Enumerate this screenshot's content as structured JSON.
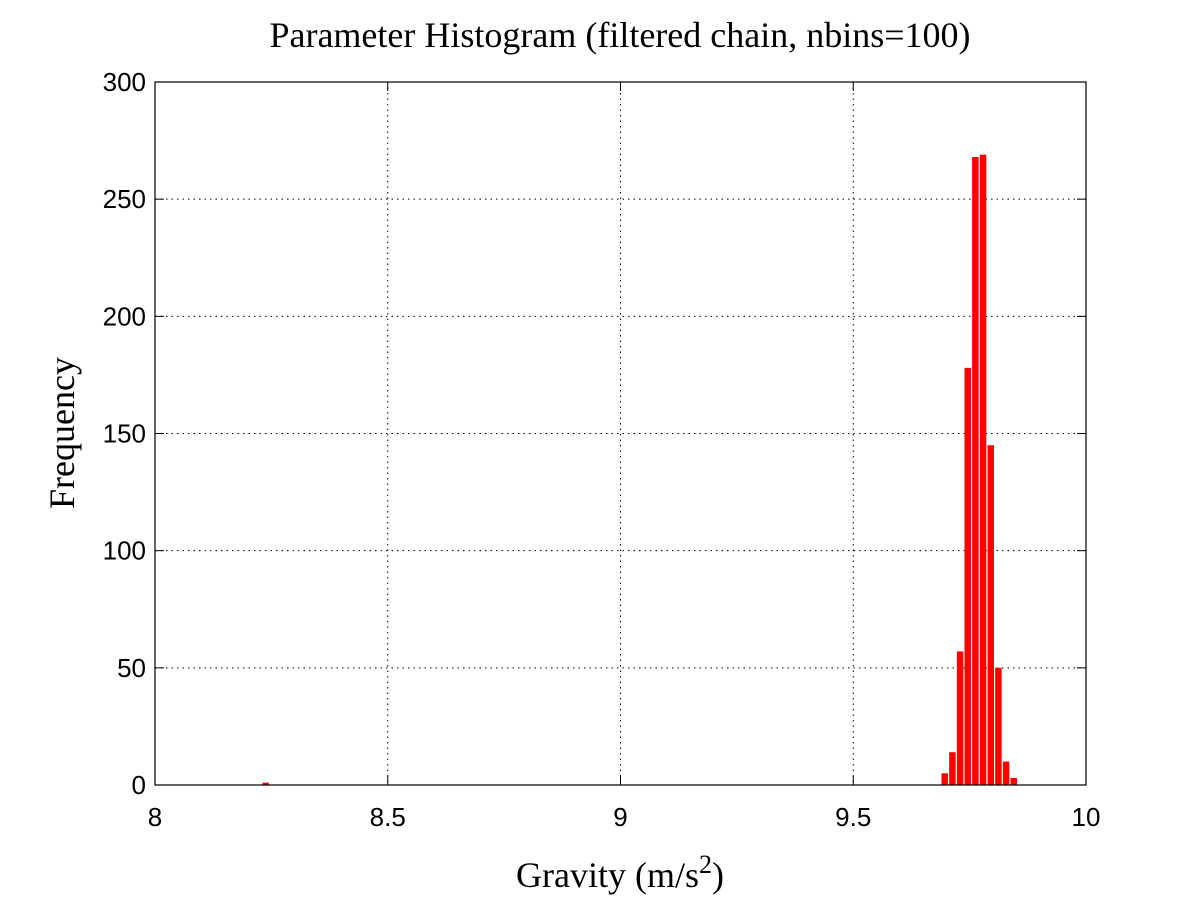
{
  "chart_data": {
    "type": "bar",
    "title": "Parameter Histogram (filtered chain, nbins=100)",
    "xlabel": "Gravity (m/s",
    "xlabel_superscript": "2",
    "xlabel_suffix": ")",
    "ylabel": "Frequency",
    "xlim": [
      8,
      10
    ],
    "ylim": [
      0,
      300
    ],
    "xticks": [
      "8",
      "8.5",
      "9",
      "9.5",
      "10"
    ],
    "yticks": [
      "0",
      "50",
      "100",
      "150",
      "200",
      "250",
      "300"
    ],
    "grid": true,
    "bar_color": "#ff0000",
    "bin_width": 0.01647,
    "bins": [
      {
        "x": 8.238,
        "value": 1
      },
      {
        "x": 9.6967,
        "value": 5
      },
      {
        "x": 9.7132,
        "value": 14
      },
      {
        "x": 9.7297,
        "value": 57
      },
      {
        "x": 9.7461,
        "value": 178
      },
      {
        "x": 9.7626,
        "value": 268
      },
      {
        "x": 9.7791,
        "value": 269
      },
      {
        "x": 9.7956,
        "value": 145
      },
      {
        "x": 9.812,
        "value": 50
      },
      {
        "x": 9.8285,
        "value": 10
      },
      {
        "x": 9.845,
        "value": 3
      }
    ]
  }
}
